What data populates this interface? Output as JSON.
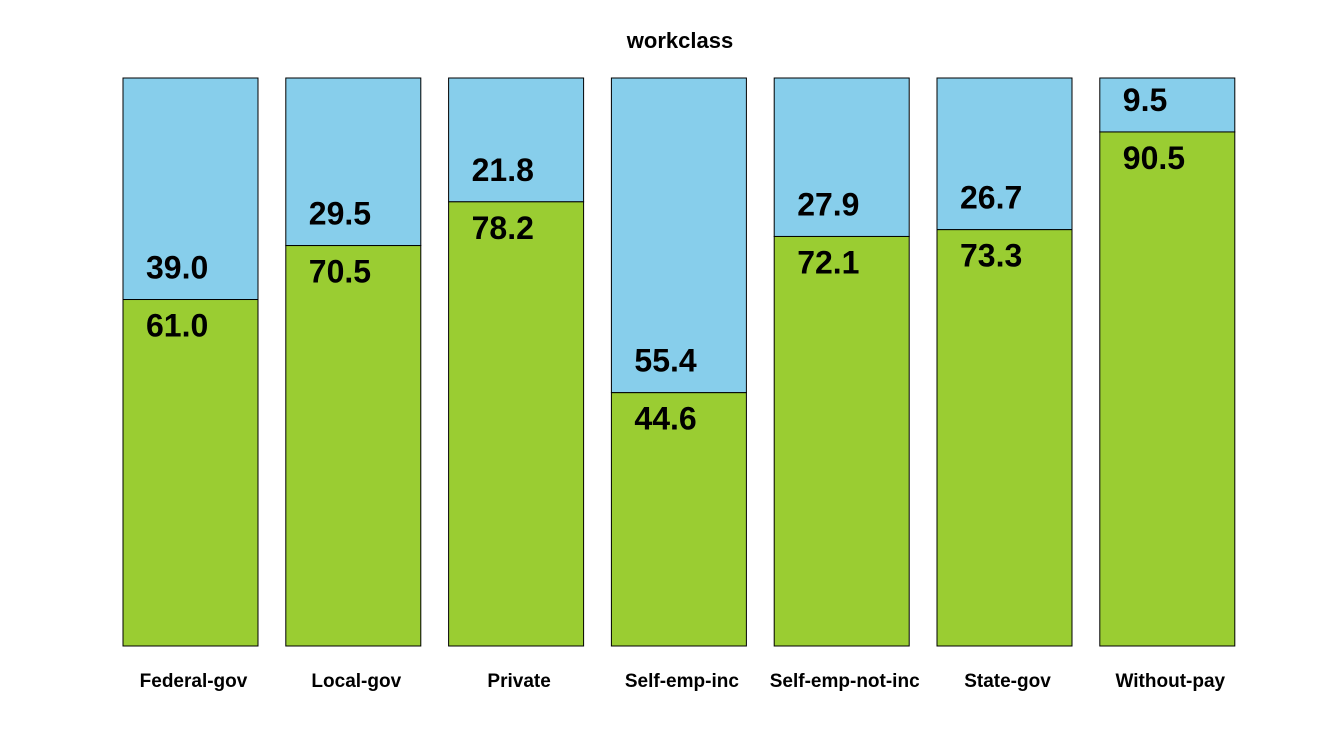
{
  "chart_data": {
    "type": "bar",
    "stacked": true,
    "title": "workclass",
    "xlabel": "",
    "ylabel": "",
    "ylim": [
      0,
      100
    ],
    "grid": false,
    "categories": [
      "Federal-gov",
      "Local-gov",
      "Private",
      "Self-emp-inc",
      "Self-emp-not-inc",
      "State-gov",
      "Without-pay"
    ],
    "series": [
      {
        "color": "#9acd32",
        "values": [
          61.0,
          70.5,
          78.2,
          44.6,
          72.1,
          73.3,
          90.5
        ],
        "labels": [
          "61.0",
          "70.5",
          "78.2",
          "44.6",
          "72.1",
          "73.3",
          "90.5"
        ]
      },
      {
        "color": "#87ceeb",
        "values": [
          39.0,
          29.5,
          21.8,
          55.4,
          27.9,
          26.7,
          9.5
        ],
        "labels": [
          "39.0",
          "29.5",
          "21.8",
          "55.4",
          "27.9",
          "26.7",
          "9.5"
        ]
      }
    ]
  }
}
